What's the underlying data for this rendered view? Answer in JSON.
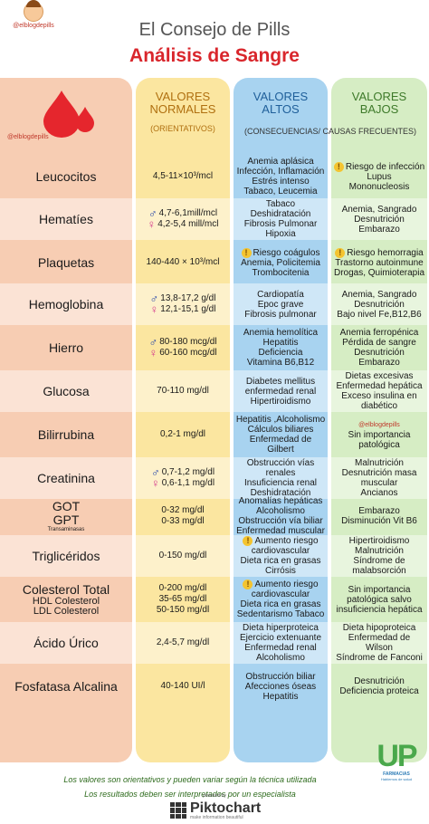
{
  "brand": {
    "handle": "@elblogdepills"
  },
  "header": {
    "title": "El Consejo de Pills",
    "subtitle": "Análisis de Sangre"
  },
  "columns": {
    "normal": {
      "title": "VALORES NORMALES",
      "sub": "(ORIENTATIVOS)"
    },
    "altos": {
      "title": "VALORES ALTOS"
    },
    "bajos": {
      "title": "VALORES BAJOS"
    },
    "consecuencias": "(CONSECUENCIAS/ CAUSAS FRECUENTES)"
  },
  "rows": [
    {
      "name": [
        "Leucocitos"
      ],
      "norm": [
        {
          "t": "4,5-11×10³/mcl"
        }
      ],
      "alt": [
        "Anemia aplásica",
        "Infección, Inflamación",
        "Estrés intenso",
        "Tabaco, Leucemia"
      ],
      "baj": [
        "Riesgo de infección",
        "Lupus",
        "Mononucleosis"
      ],
      "baj_warn": true
    },
    {
      "name": [
        "Hematíes"
      ],
      "norm": [
        {
          "g": "male",
          "t": "4,7-6,1mill/mcl"
        },
        {
          "g": "female",
          "t": "4,2-5,4 mill/mcl"
        }
      ],
      "alt": [
        "Tabaco",
        "Deshidratación",
        "Fibrosis Pulmonar",
        "Hipoxia"
      ],
      "baj": [
        "Anemia, Sangrado",
        "Desnutrición",
        "Embarazo"
      ]
    },
    {
      "name": [
        "Plaquetas"
      ],
      "norm": [
        {
          "t": "140-440 × 10³/mcl"
        }
      ],
      "alt": [
        "Riesgo coágulos",
        "Anemia, Policitemia",
        "Trombocitenia"
      ],
      "alt_warn": true,
      "baj": [
        "Riesgo hemorragia",
        "Trastorno autoinmune",
        "Drogas, Quimioterapia"
      ],
      "baj_warn": true
    },
    {
      "name": [
        "Hemoglobina"
      ],
      "norm": [
        {
          "g": "male",
          "t": "13,8-17,2 g/dl"
        },
        {
          "g": "female",
          "t": "12,1-15,1 g/dl"
        }
      ],
      "alt": [
        "Cardiopatía",
        "Epoc grave",
        "Fibrosis pulmonar"
      ],
      "baj": [
        "Anemia, Sangrado",
        "Desnutrición",
        "Bajo nivel Fe,B12,B6"
      ]
    },
    {
      "name": [
        "Hierro"
      ],
      "norm": [
        {
          "g": "male",
          "t": "80-180 mcg/dl"
        },
        {
          "g": "female",
          "t": "60-160 mcg/dl"
        }
      ],
      "alt": [
        "Anemia hemolítica",
        "Hepatitis",
        "Deficiencia",
        "Vitamina B6,B12"
      ],
      "baj": [
        "Anemia ferropénica",
        "Pérdida de sangre",
        "Desnutrición",
        "Embarazo"
      ]
    },
    {
      "name": [
        "Glucosa"
      ],
      "norm": [
        {
          "t": "70-110 mg/dl"
        }
      ],
      "alt": [
        "Diabetes mellitus",
        "enfermedad renal",
        "Hipertiroidismo"
      ],
      "baj": [
        "Dietas excesivas",
        "Enfermedad hepática",
        "Exceso insulina en",
        "diabético"
      ]
    },
    {
      "name": [
        "Bilirrubina"
      ],
      "norm": [
        {
          "t": "0,2-1 mg/dl"
        }
      ],
      "alt": [
        "Hepatitis ,Alcoholismo",
        "Cálculos biliares",
        "Enfermedad de",
        "Gilbert"
      ],
      "baj": [
        "Sin importancia",
        "patológica"
      ],
      "baj_handle": "@elblogdepills"
    },
    {
      "name": [
        "Creatinina"
      ],
      "norm": [
        {
          "g": "male",
          "t": "0,7-1,2 mg/dl"
        },
        {
          "g": "female",
          "t": "0,6-1,1 mg/dl"
        }
      ],
      "alt": [
        "Obstrucción vías",
        "renales",
        "Insuficiencia renal",
        "Deshidratación"
      ],
      "baj": [
        "Malnutrición",
        "Desnutrición masa",
        "muscular",
        "Ancianos"
      ]
    },
    {
      "name": [
        "GOT",
        "GPT"
      ],
      "name_small": "Transaminasas",
      "norm": [
        {
          "t": "0-32 mg/dl"
        },
        {
          "t": "0-33 mg/dl"
        }
      ],
      "alt": [
        "Anomalías hepáticas",
        "Alcoholismo",
        "Obstrucción vía biliar",
        "Enfermedad muscular"
      ],
      "baj": [
        "Embarazo",
        "Disminución Vit B6"
      ]
    },
    {
      "name": [
        "Triglicéridos"
      ],
      "norm": [
        {
          "t": "0-150 mg/dl"
        }
      ],
      "alt": [
        "Aumento riesgo",
        "cardiovascular",
        "Dieta rica en grasas",
        "Cirrósis"
      ],
      "alt_warn": true,
      "baj": [
        "Hipertiroidismo",
        "Malnutrición",
        "Síndrome de",
        "malabsorción"
      ]
    },
    {
      "name": [
        "Colesterol Total"
      ],
      "name_sub": [
        "HDL Colesterol",
        "LDL Colesterol"
      ],
      "norm": [
        {
          "t": "0-200 mg/dl"
        },
        {
          "t": "35-65 mg/dl"
        },
        {
          "t": "50-150 mg/dl"
        }
      ],
      "alt": [
        "Aumento riesgo",
        "cardiovascular",
        "Dieta rica en grasas",
        "Sedentarismo Tabaco"
      ],
      "alt_warn": true,
      "baj": [
        "Sin importancia",
        "patológica salvo",
        "insuficiencia hepática"
      ]
    },
    {
      "name": [
        "Ácido Úrico"
      ],
      "norm": [
        {
          "t": "2,4-5,7 mg/dl"
        }
      ],
      "alt": [
        "Dieta hiperproteica",
        "Ejercicio extenuante",
        "Enfermedad renal",
        "Alcoholismo"
      ],
      "baj": [
        "Dieta hipoproteica",
        "Enfermedad de",
        "Wilson",
        "Síndrome de Fanconi"
      ]
    },
    {
      "name": [
        "Fosfatasa Alcalina"
      ],
      "norm": [
        {
          "t": "40-140 UI/l"
        }
      ],
      "alt": [
        "Obstrucción biliar",
        "Afecciones óseas",
        "Hepatitis"
      ],
      "baj": [
        "Desnutrición",
        "Deficiencia proteica"
      ]
    }
  ],
  "footer": {
    "line1": "Los valores son orientativos y pueden variar según la técnica utilizada",
    "line2": "Los resultados deben ser interpretados por un especialista",
    "logo_text": "UP",
    "logo_name": "FARMACIAS",
    "logo_tag": "Hablemos de salud",
    "powered": "powered by",
    "pikto": "Piktochart",
    "pikto_tag": "make information beautiful"
  },
  "colors": {
    "title_red": "#d9262c",
    "normal_col": "#fbe6a0",
    "altos_col": "#a8d3f0",
    "bajos_col": "#d6edc4",
    "left_col": "#f7cdb3"
  }
}
